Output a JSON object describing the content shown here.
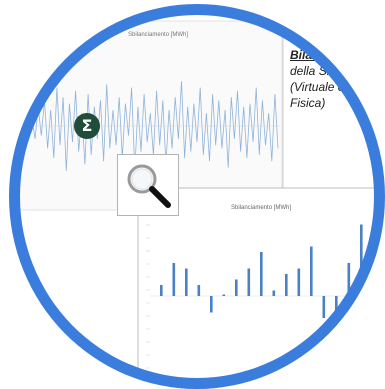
{
  "top_chart": {
    "title": "Sbilanciamento [MWh]"
  },
  "bottom_chart": {
    "title": "Sbilanciamento [MWh]"
  },
  "side_text": {
    "title": "Bilan",
    "line1": "della Sm",
    "line2": "(Virtuale o",
    "line3": "Fisica)"
  },
  "sigma_icon": {
    "glyph": "Σ"
  },
  "colors": {
    "ring": "#3b7ddd",
    "bars": "#4a80c4",
    "signal": "#8fb4da",
    "sigma_bg": "#1f4d3a"
  },
  "chart_data": [
    {
      "type": "line",
      "title": "Sbilanciamento [MWh]",
      "series": [
        {
          "values": [
            2,
            -4,
            6,
            -3,
            8,
            -7,
            5,
            -10,
            12,
            -6,
            9,
            -14,
            7,
            -5,
            11,
            -8,
            4,
            -12,
            10,
            -9,
            6,
            -4,
            8,
            -11,
            13,
            -7,
            5,
            -6,
            9,
            -10,
            7,
            -3,
            12,
            -14,
            6,
            -8,
            10,
            -5,
            4,
            -9,
            11,
            -6,
            8,
            -12,
            5,
            -7,
            9,
            -4,
            14,
            -10,
            6,
            -8,
            7,
            -5,
            12,
            -9,
            4,
            -11,
            10,
            -6,
            8,
            -7,
            5,
            -13,
            9,
            -4,
            11,
            -8,
            6,
            -10,
            7,
            -5,
            12,
            -9,
            8,
            -6,
            4,
            -11,
            10,
            -7
          ]
        }
      ]
    },
    {
      "type": "bar",
      "title": "Sbilanciamento [MWh]",
      "series": [
        {
          "values": [
            2,
            6,
            5,
            2,
            -3,
            0,
            3,
            5,
            8,
            1,
            4,
            5,
            9,
            -4,
            -8,
            6,
            13
          ]
        }
      ]
    }
  ]
}
